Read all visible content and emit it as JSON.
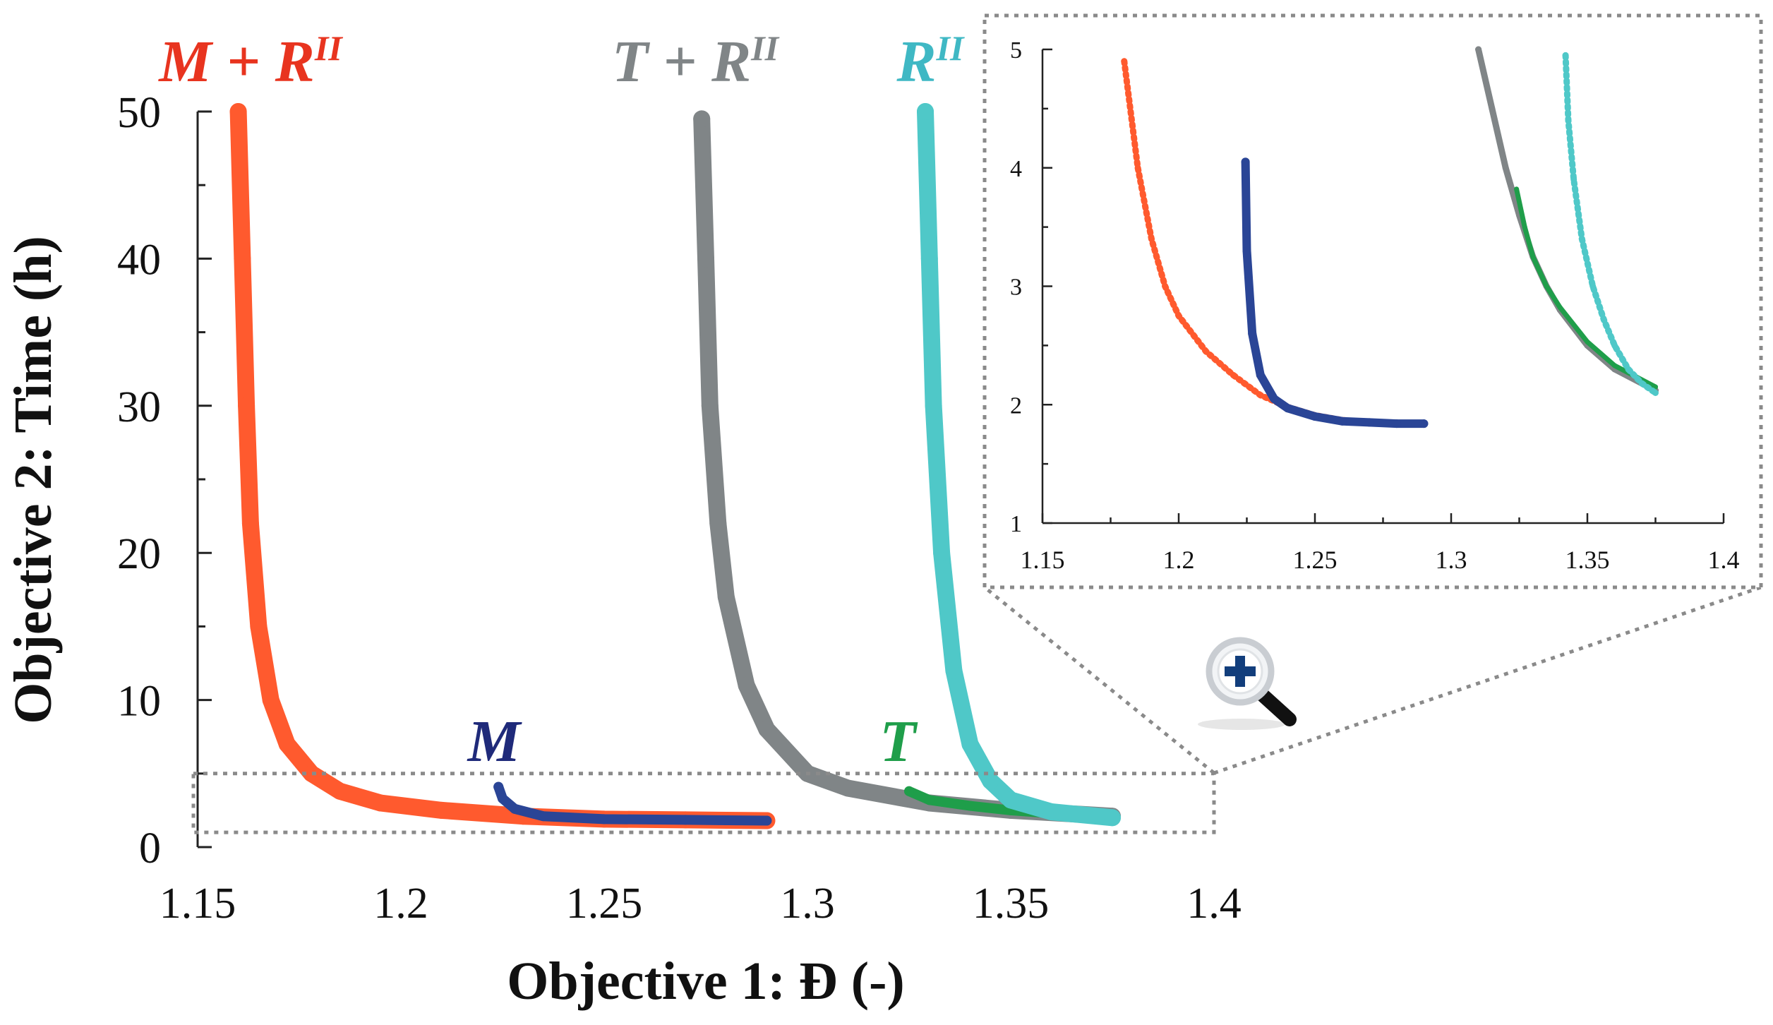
{
  "chart_data": [
    {
      "type": "scatter",
      "title": "",
      "xlabel": "Objective 1: Đ (-)",
      "ylabel": "Objective 2: Time (h)",
      "xlim": [
        1.15,
        1.4
      ],
      "ylim": [
        0,
        50
      ],
      "xticks": [
        "1.15",
        "1.2",
        "1.25",
        "1.3",
        "1.35",
        "1.4"
      ],
      "yticks": [
        "0",
        "10",
        "20",
        "30",
        "40",
        "50"
      ],
      "grid": false,
      "legend": "none",
      "series": [
        {
          "name": "M + R",
          "superscript": "II",
          "color": "#ff5a2e",
          "x": [
            1.16,
            1.161,
            1.162,
            1.163,
            1.165,
            1.168,
            1.172,
            1.178,
            1.185,
            1.195,
            1.21,
            1.23,
            1.25,
            1.27,
            1.29
          ],
          "y": [
            50,
            40,
            30,
            22,
            15,
            10,
            7,
            5,
            3.8,
            3.0,
            2.5,
            2.1,
            1.9,
            1.85,
            1.8
          ]
        },
        {
          "name": "M",
          "color": "#2a4596",
          "x": [
            1.224,
            1.225,
            1.228,
            1.235,
            1.25,
            1.27,
            1.29
          ],
          "y": [
            4.1,
            3.3,
            2.6,
            2.1,
            1.9,
            1.85,
            1.8
          ]
        },
        {
          "name": "T + R",
          "superscript": "II",
          "color": "#808587",
          "x": [
            1.274,
            1.275,
            1.276,
            1.278,
            1.28,
            1.285,
            1.29,
            1.3,
            1.31,
            1.33,
            1.35,
            1.375
          ],
          "y": [
            49.5,
            40,
            30,
            22,
            17,
            11,
            8,
            5,
            4.0,
            3.0,
            2.5,
            2.1
          ]
        },
        {
          "name": "T",
          "color": "#1f9e4a",
          "x": [
            1.325,
            1.33,
            1.34,
            1.35,
            1.36,
            1.375
          ],
          "y": [
            3.8,
            3.2,
            2.8,
            2.5,
            2.3,
            2.2
          ]
        },
        {
          "name": "R",
          "superscript": "II",
          "color": "#4fc8c8",
          "x": [
            1.329,
            1.33,
            1.331,
            1.333,
            1.336,
            1.34,
            1.345,
            1.35,
            1.36,
            1.375
          ],
          "y": [
            50,
            40,
            30,
            20,
            12,
            7,
            4.5,
            3.2,
            2.4,
            2.0
          ]
        }
      ],
      "labels": [
        {
          "text": "M + R",
          "superscript": "II",
          "color": "#e8341f"
        },
        {
          "text": "T + R",
          "superscript": "II",
          "color": "#808587"
        },
        {
          "text": "R",
          "superscript": "II",
          "color": "#3fb8c4"
        },
        {
          "text": "M",
          "superscript": "",
          "color": "#1f2a7a"
        },
        {
          "text": "T",
          "superscript": "",
          "color": "#1f9e4a"
        }
      ],
      "zoom_region": {
        "xlim": [
          1.15,
          1.4
        ],
        "ylim": [
          1,
          5
        ]
      }
    },
    {
      "type": "scatter",
      "title": "",
      "xlabel": "",
      "ylabel": "",
      "xlim": [
        1.15,
        1.4
      ],
      "ylim": [
        1,
        5
      ],
      "xticks": [
        "1.15",
        "1.2",
        "1.25",
        "1.3",
        "1.35",
        "1.4"
      ],
      "yticks": [
        "1",
        "2",
        "3",
        "4",
        "5"
      ],
      "grid": false,
      "legend": "none",
      "series": [
        {
          "color": "#ff5a2e",
          "x": [
            1.18,
            1.185,
            1.19,
            1.195,
            1.2,
            1.21,
            1.22,
            1.23,
            1.24,
            1.25,
            1.26,
            1.27,
            1.28,
            1.29
          ],
          "y": [
            4.9,
            4.0,
            3.4,
            3.0,
            2.75,
            2.45,
            2.25,
            2.08,
            1.98,
            1.91,
            1.87,
            1.85,
            1.84,
            1.84
          ]
        },
        {
          "color": "#2a4596",
          "x": [
            1.2245,
            1.225,
            1.227,
            1.23,
            1.235,
            1.24,
            1.25,
            1.26,
            1.27,
            1.28,
            1.29
          ],
          "y": [
            4.05,
            3.3,
            2.6,
            2.25,
            2.05,
            1.97,
            1.9,
            1.86,
            1.85,
            1.84,
            1.84
          ]
        },
        {
          "color": "#808587",
          "x": [
            1.31,
            1.315,
            1.32,
            1.325,
            1.33,
            1.335,
            1.34,
            1.35,
            1.36,
            1.375
          ],
          "y": [
            5.0,
            4.5,
            4.0,
            3.6,
            3.25,
            3.0,
            2.8,
            2.5,
            2.3,
            2.12
          ]
        },
        {
          "color": "#1f9e4a",
          "x": [
            1.324,
            1.327,
            1.33,
            1.335,
            1.34,
            1.35,
            1.36,
            1.375
          ],
          "y": [
            3.82,
            3.5,
            3.25,
            3.0,
            2.82,
            2.53,
            2.33,
            2.15
          ]
        },
        {
          "color": "#4fc8c8",
          "x": [
            1.342,
            1.343,
            1.345,
            1.348,
            1.352,
            1.356,
            1.36,
            1.365,
            1.37,
            1.375
          ],
          "y": [
            4.95,
            4.4,
            3.9,
            3.4,
            3.0,
            2.72,
            2.5,
            2.3,
            2.18,
            2.1
          ]
        }
      ]
    }
  ],
  "icons": {
    "zoom": "magnifier-plus-icon"
  }
}
